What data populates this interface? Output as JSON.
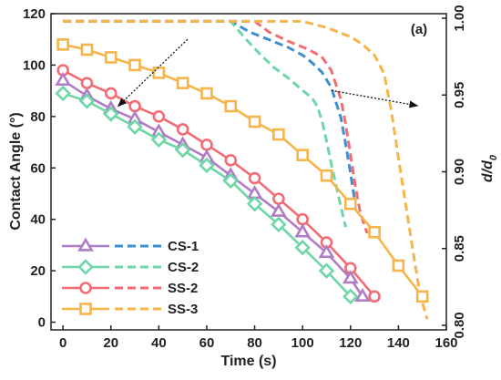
{
  "chart_data": {
    "type": "line",
    "panel_label": "(a)",
    "xlabel": "Time (s)",
    "ylabel": "Contact Angle (°)",
    "y2label_main": "d/d",
    "y2label_sub": "0",
    "xlim": [
      -5,
      160
    ],
    "ylim": [
      -3,
      120
    ],
    "y2lim": [
      0.797,
      1.003
    ],
    "xticks": [
      0,
      20,
      40,
      60,
      80,
      100,
      120,
      140,
      160
    ],
    "yticks": [
      0,
      20,
      40,
      60,
      80,
      100,
      120
    ],
    "y2ticks": [
      0.8,
      0.85,
      0.9,
      0.95,
      1.0
    ],
    "grid": false,
    "legend": "bottom-left",
    "contact_angle_series": [
      {
        "name": "CS-1",
        "color": "#b07cc6",
        "marker": "triangle",
        "x": [
          0,
          10,
          20,
          30,
          40,
          50,
          60,
          70,
          80,
          90,
          100,
          110,
          120,
          125
        ],
        "y": [
          94,
          88,
          83,
          79,
          74,
          69,
          64,
          57,
          50,
          43,
          35,
          27,
          17,
          10
        ]
      },
      {
        "name": "CS-2",
        "color": "#6fd6a7",
        "marker": "diamond",
        "x": [
          0,
          10,
          20,
          30,
          40,
          50,
          60,
          70,
          80,
          90,
          100,
          110,
          120
        ],
        "y": [
          89,
          86,
          81,
          76,
          71,
          67,
          61,
          55,
          46,
          38,
          29,
          20,
          10
        ]
      },
      {
        "name": "SS-2",
        "color": "#f36c73",
        "marker": "circle",
        "x": [
          0,
          10,
          20,
          30,
          40,
          50,
          60,
          70,
          80,
          90,
          100,
          110,
          120,
          130
        ],
        "y": [
          98,
          93,
          89,
          84,
          80,
          75,
          69,
          63,
          56,
          48,
          40,
          31,
          21,
          10
        ]
      },
      {
        "name": "SS-3",
        "color": "#f6b54b",
        "marker": "square",
        "x": [
          0,
          10,
          20,
          30,
          40,
          50,
          60,
          70,
          80,
          90,
          100,
          110,
          120,
          130,
          140,
          150
        ],
        "y": [
          108,
          106,
          103,
          100,
          97,
          93,
          89,
          84,
          78,
          73,
          65,
          57,
          46,
          35,
          22,
          10
        ]
      }
    ],
    "diameter_series": [
      {
        "name": "CS-1",
        "color": "#3f8fcf",
        "x": [
          0,
          70,
          78,
          86,
          94,
          100,
          104,
          108,
          112,
          116,
          118,
          120,
          122
        ],
        "y": [
          0.998,
          0.998,
          0.991,
          0.986,
          0.981,
          0.976,
          0.971,
          0.965,
          0.955,
          0.935,
          0.918,
          0.899,
          0.879
        ]
      },
      {
        "name": "CS-2",
        "color": "#6fd6a7",
        "x": [
          0,
          70,
          76,
          82,
          88,
          94,
          100,
          104,
          106,
          108,
          110,
          112,
          114,
          116,
          118
        ],
        "y": [
          0.998,
          0.998,
          0.987,
          0.977,
          0.968,
          0.961,
          0.953,
          0.948,
          0.943,
          0.934,
          0.92,
          0.905,
          0.891,
          0.877,
          0.864
        ]
      },
      {
        "name": "SS-2",
        "color": "#f36c73",
        "x": [
          0,
          80,
          86,
          94,
          102,
          108,
          112,
          116,
          118,
          120,
          122,
          124,
          126,
          127
        ],
        "y": [
          0.998,
          0.998,
          0.991,
          0.985,
          0.98,
          0.975,
          0.966,
          0.947,
          0.931,
          0.911,
          0.891,
          0.874,
          0.864,
          0.86
        ]
      },
      {
        "name": "SS-3",
        "color": "#f6b54b",
        "x": [
          0,
          100,
          110,
          120,
          125,
          130,
          134,
          137,
          140,
          143,
          146,
          149,
          152
        ],
        "y": [
          0.998,
          0.998,
          0.994,
          0.988,
          0.983,
          0.976,
          0.964,
          0.94,
          0.909,
          0.879,
          0.849,
          0.82,
          0.804
        ]
      }
    ],
    "arrows": [
      {
        "x1": 52,
        "y1": 110,
        "x2": 23,
        "y2": 84,
        "direction": "left"
      },
      {
        "x1": 112,
        "y1": 0.953,
        "x2": 148,
        "y2": 0.943,
        "direction": "right"
      }
    ]
  }
}
